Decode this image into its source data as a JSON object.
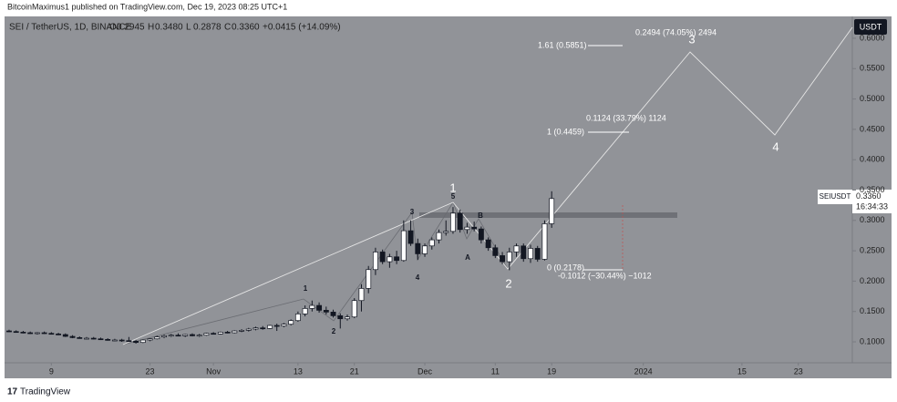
{
  "publisher": "BitcoinMaximus1 published on TradingView.com, Dec 19, 2023 08:25 UTC+1",
  "footer": "TradingView",
  "chart_data": {
    "type": "candlestick",
    "title": "SEI / TetherUS, 1D, BINANCE",
    "legend_values": [
      {
        "label": "O",
        "value": "0.2945"
      },
      {
        "label": "H",
        "value": "0.3480"
      },
      {
        "label": "L",
        "value": "0.2878"
      },
      {
        "label": "C",
        "value": "0.3360"
      }
    ],
    "change": "+0.0415 (+14.09%)",
    "currency": "USDT",
    "symbol": "SEIUSDT",
    "last_price": {
      "value": 0.336,
      "label": "0.3360"
    },
    "countdown": "16:34:33",
    "up_color": "#ffffff",
    "down_color": "#131722",
    "wick_color": "#131722",
    "categories": [
      null,
      null,
      null,
      null,
      null,
      null,
      "9",
      null,
      null,
      null,
      null,
      null,
      null,
      null,
      null,
      null,
      null,
      null,
      null,
      null,
      "23",
      null,
      null,
      null,
      null,
      null,
      null,
      null,
      null,
      "Nov",
      null,
      null,
      null,
      null,
      null,
      null,
      null,
      null,
      null,
      null,
      null,
      "13",
      null,
      null,
      null,
      null,
      null,
      null,
      null,
      "21",
      null,
      null,
      null,
      null,
      null,
      null,
      null,
      null,
      null,
      "Dec",
      null,
      null,
      null,
      null,
      null,
      null,
      null,
      null,
      null,
      "11",
      null,
      null,
      null,
      null,
      null,
      null,
      null,
      "19",
      null,
      null,
      null,
      null,
      null,
      null,
      null,
      null,
      null,
      null,
      null,
      null,
      "2024",
      null,
      null,
      null,
      null,
      null,
      null,
      null,
      null,
      null,
      null,
      null,
      null,
      null,
      "15",
      null,
      null,
      null,
      null,
      null,
      null,
      null,
      "23",
      null,
      null,
      null,
      null,
      null,
      null,
      null
    ],
    "open": [
      0.118,
      0.117,
      0.116,
      0.115,
      0.114,
      0.115,
      0.114,
      0.113,
      0.112,
      0.109,
      0.107,
      0.106,
      0.106,
      0.105,
      0.104,
      0.103,
      0.103,
      0.102,
      0.101,
      0.099,
      0.103,
      0.105,
      0.108,
      0.11,
      0.111,
      0.11,
      0.112,
      0.11,
      0.111,
      0.114,
      0.113,
      0.116,
      0.115,
      0.118,
      0.119,
      0.121,
      0.123,
      0.122,
      0.127,
      0.126,
      0.129,
      0.135,
      0.146,
      0.155,
      0.16,
      0.152,
      0.149,
      0.143,
      0.138,
      0.141,
      0.168,
      0.188,
      0.219,
      0.248,
      0.232,
      0.24,
      0.234,
      0.283,
      0.262,
      0.245,
      0.258,
      0.268,
      0.28,
      0.282,
      0.312,
      0.285,
      0.289,
      0.286,
      0.268,
      0.255,
      0.242,
      0.232,
      0.248,
      0.258,
      0.237,
      0.254,
      0.236,
      0.2945,
      null,
      null,
      null,
      null,
      null,
      null,
      null,
      null,
      null,
      null,
      null,
      null,
      null,
      null,
      null,
      null,
      null,
      null,
      null,
      null,
      null,
      null,
      null,
      null,
      null,
      null,
      null,
      null,
      null,
      null,
      null,
      null,
      null,
      null,
      null,
      null,
      null,
      null,
      null,
      null,
      null,
      null
    ],
    "high": [
      0.12,
      0.119,
      0.118,
      0.117,
      0.116,
      0.117,
      0.116,
      0.115,
      0.114,
      0.111,
      0.109,
      0.108,
      0.108,
      0.107,
      0.106,
      0.105,
      0.105,
      0.108,
      0.103,
      0.104,
      0.106,
      0.11,
      0.112,
      0.113,
      0.114,
      0.113,
      0.114,
      0.113,
      0.115,
      0.116,
      0.117,
      0.118,
      0.119,
      0.121,
      0.123,
      0.125,
      0.126,
      0.128,
      0.13,
      0.131,
      0.137,
      0.15,
      0.16,
      0.168,
      0.165,
      0.158,
      0.153,
      0.147,
      0.145,
      0.172,
      0.195,
      0.225,
      0.255,
      0.252,
      0.245,
      0.25,
      0.3,
      0.3,
      0.27,
      0.262,
      0.272,
      0.285,
      0.3,
      0.322,
      0.318,
      0.296,
      0.298,
      0.29,
      0.272,
      0.26,
      0.248,
      0.255,
      0.262,
      0.262,
      0.26,
      0.258,
      0.3,
      0.348,
      null,
      null,
      null,
      null,
      null,
      null,
      null,
      null,
      null,
      null,
      null,
      null,
      null,
      null,
      null,
      null,
      null,
      null,
      null,
      null,
      null,
      null,
      null,
      null,
      null,
      null,
      null,
      null,
      null,
      null,
      null,
      null,
      null,
      null,
      null,
      null,
      null,
      null,
      null,
      null,
      null,
      null
    ],
    "low": [
      0.116,
      0.115,
      0.114,
      0.113,
      0.112,
      0.113,
      0.112,
      0.111,
      0.108,
      0.106,
      0.105,
      0.104,
      0.104,
      0.103,
      0.102,
      0.101,
      0.1,
      0.1,
      0.097,
      0.098,
      0.101,
      0.104,
      0.106,
      0.108,
      0.109,
      0.108,
      0.109,
      0.108,
      0.11,
      0.112,
      0.112,
      0.114,
      0.114,
      0.116,
      0.117,
      0.119,
      0.12,
      0.121,
      0.118,
      0.124,
      0.127,
      0.133,
      0.142,
      0.15,
      0.148,
      0.145,
      0.14,
      0.122,
      0.135,
      0.139,
      0.15,
      0.18,
      0.21,
      0.228,
      0.222,
      0.228,
      0.232,
      0.258,
      0.235,
      0.24,
      0.252,
      0.262,
      0.275,
      0.278,
      0.28,
      0.278,
      0.282,
      0.262,
      0.25,
      0.238,
      0.228,
      0.218,
      0.24,
      0.232,
      0.23,
      0.232,
      0.234,
      0.2878,
      null,
      null,
      null,
      null,
      null,
      null,
      null,
      null,
      null,
      null,
      null,
      null,
      null,
      null,
      null,
      null,
      null,
      null,
      null,
      null,
      null,
      null,
      null,
      null,
      null,
      null,
      null,
      null,
      null,
      null,
      null,
      null,
      null,
      null,
      null,
      null,
      null,
      null,
      null,
      null,
      null,
      null
    ],
    "close": [
      0.117,
      0.116,
      0.115,
      0.114,
      0.115,
      0.114,
      0.113,
      0.112,
      0.109,
      0.107,
      0.106,
      0.106,
      0.105,
      0.104,
      0.103,
      0.103,
      0.102,
      0.101,
      0.099,
      0.103,
      0.105,
      0.108,
      0.11,
      0.111,
      0.11,
      0.112,
      0.11,
      0.111,
      0.114,
      0.113,
      0.116,
      0.115,
      0.118,
      0.119,
      0.121,
      0.123,
      0.122,
      0.127,
      0.126,
      0.129,
      0.135,
      0.146,
      0.155,
      0.16,
      0.152,
      0.149,
      0.143,
      0.138,
      0.141,
      0.168,
      0.188,
      0.219,
      0.248,
      0.232,
      0.24,
      0.234,
      0.283,
      0.262,
      0.245,
      0.258,
      0.268,
      0.28,
      0.282,
      0.312,
      0.285,
      0.289,
      0.286,
      0.268,
      0.255,
      0.242,
      0.232,
      0.248,
      0.258,
      0.237,
      0.254,
      0.236,
      0.2945,
      0.336,
      null,
      null,
      null,
      null,
      null,
      null,
      null,
      null,
      null,
      null,
      null,
      null,
      null,
      null,
      null,
      null,
      null,
      null,
      null,
      null,
      null,
      null,
      null,
      null,
      null,
      null,
      null,
      null,
      null,
      null,
      null,
      null,
      null,
      null,
      null,
      null,
      null,
      null,
      null,
      null,
      null,
      null
    ],
    "ylim": [
      0.0655,
      0.636
    ],
    "yticks": [
      {
        "value": 0.1,
        "label": "0.1000"
      },
      {
        "value": 0.15,
        "label": "0.1500"
      },
      {
        "value": 0.2,
        "label": "0.2000"
      },
      {
        "value": 0.25,
        "label": "0.2500"
      },
      {
        "value": 0.3,
        "label": "0.3000"
      },
      {
        "value": 0.35,
        "label": "0.3500"
      },
      {
        "value": 0.4,
        "label": "0.4000"
      },
      {
        "value": 0.45,
        "label": "0.4500"
      },
      {
        "value": 0.5,
        "label": "0.5000"
      },
      {
        "value": 0.55,
        "label": "0.5500"
      },
      {
        "value": 0.6,
        "label": "0.6000"
      }
    ],
    "wave_labels": [
      "1",
      "2",
      "3",
      "4",
      "5",
      "1",
      "A",
      "B",
      "2",
      "3",
      "4"
    ],
    "fib_labels": [
      "1.61 (0.5851)",
      "0.2494 (74.05%) 2494",
      "0.1124 (33.79%) 1124",
      "1 (0.4459)",
      "0 (0.2178)",
      "-0.1012 (−30.44%) −1012"
    ]
  }
}
